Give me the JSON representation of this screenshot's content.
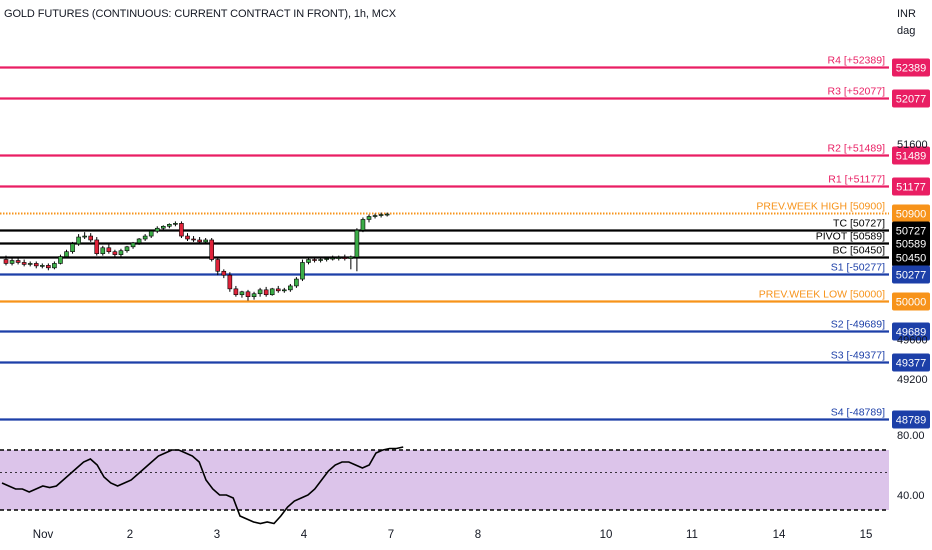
{
  "header": {
    "title": "GOLD FUTURES (CONTINUOUS: CURRENT CONTRACT IN FRONT), 1h, MCX",
    "currency": "INR",
    "currency_sub": "dag"
  },
  "colors": {
    "resistance": "#e91e63",
    "support": "#1c3fa8",
    "pivot": "#000000",
    "prev_week": "#f7931a",
    "up": "#3cae48",
    "down": "#e0233a",
    "rsi_fill": "#dcc4ea",
    "rsi_line": "#000000"
  },
  "chart_data": [
    {
      "type": "line",
      "name": "pivot-levels-price-chart",
      "ylim": [
        48700,
        52500
      ],
      "y_ticks": [
        {
          "value": 51600,
          "label": "51600"
        },
        {
          "value": 49600,
          "label": "49600"
        },
        {
          "value": 49200,
          "label": "49200"
        }
      ],
      "x_ticks": [
        "Nov",
        "2",
        "3",
        "4",
        "7",
        "8",
        "10",
        "11",
        "14",
        "15"
      ],
      "levels": [
        {
          "key": "r4",
          "label": "R4 [+52389]",
          "value": 52389,
          "badge": "52389",
          "color": "#e91e63",
          "style": "solid"
        },
        {
          "key": "r3",
          "label": "R3 [+52077]",
          "value": 52077,
          "badge": "52077",
          "color": "#e91e63",
          "style": "solid"
        },
        {
          "key": "r2",
          "label": "R2 [+51489]",
          "value": 51489,
          "badge": "51489",
          "color": "#e91e63",
          "style": "solid"
        },
        {
          "key": "r1",
          "label": "R1 [+51177]",
          "value": 51177,
          "badge": "51177",
          "color": "#e91e63",
          "style": "solid"
        },
        {
          "key": "pwh",
          "label": "PREV.WEEK HIGH [50900]",
          "value": 50900,
          "badge": "50900",
          "color": "#f7931a",
          "style": "dotted"
        },
        {
          "key": "tc",
          "label": "TC [50727]",
          "value": 50727,
          "badge": "50727",
          "color": "#000000",
          "style": "solid"
        },
        {
          "key": "pivot",
          "label": "PIVOT [50589]",
          "value": 50589,
          "badge": "50589",
          "color": "#000000",
          "style": "solid"
        },
        {
          "key": "bc",
          "label": "BC [50450]",
          "value": 50450,
          "badge": "50450",
          "color": "#000000",
          "style": "solid"
        },
        {
          "key": "s1",
          "label": "S1 [-50277]",
          "value": 50277,
          "badge": "50277",
          "color": "#1c3fa8",
          "style": "solid"
        },
        {
          "key": "pwl",
          "label": "PREV.WEEK LOW [50000]",
          "value": 50000,
          "badge": "50000",
          "color": "#f7931a",
          "style": "solid"
        },
        {
          "key": "s2",
          "label": "S2 [-49689]",
          "value": 49689,
          "badge": "49689",
          "color": "#1c3fa8",
          "style": "solid"
        },
        {
          "key": "s3",
          "label": "S3 [-49377]",
          "value": 49377,
          "badge": "49377",
          "color": "#1c3fa8",
          "style": "solid"
        },
        {
          "key": "s4",
          "label": "S4 [-48789]",
          "value": 48789,
          "badge": "48789",
          "color": "#1c3fa8",
          "style": "solid"
        }
      ],
      "candles": [
        {
          "o": 50420,
          "h": 50460,
          "c": 50380,
          "l": 50360
        },
        {
          "o": 50380,
          "h": 50440,
          "c": 50410,
          "l": 50360
        },
        {
          "o": 50410,
          "h": 50440,
          "c": 50390,
          "l": 50370
        },
        {
          "o": 50390,
          "h": 50420,
          "c": 50370,
          "l": 50350
        },
        {
          "o": 50370,
          "h": 50400,
          "c": 50380,
          "l": 50350
        },
        {
          "o": 50380,
          "h": 50400,
          "c": 50355,
          "l": 50330
        },
        {
          "o": 50355,
          "h": 50380,
          "c": 50360,
          "l": 50330
        },
        {
          "o": 50360,
          "h": 50380,
          "c": 50335,
          "l": 50310
        },
        {
          "o": 50335,
          "h": 50400,
          "c": 50380,
          "l": 50320
        },
        {
          "o": 50380,
          "h": 50470,
          "c": 50450,
          "l": 50370
        },
        {
          "o": 50450,
          "h": 50520,
          "c": 50500,
          "l": 50430
        },
        {
          "o": 50500,
          "h": 50600,
          "c": 50580,
          "l": 50480
        },
        {
          "o": 50580,
          "h": 50680,
          "c": 50650,
          "l": 50560
        },
        {
          "o": 50650,
          "h": 50700,
          "c": 50660,
          "l": 50630
        },
        {
          "o": 50660,
          "h": 50690,
          "c": 50620,
          "l": 50600
        },
        {
          "o": 50620,
          "h": 50650,
          "c": 50480,
          "l": 50460
        },
        {
          "o": 50480,
          "h": 50560,
          "c": 50540,
          "l": 50460
        },
        {
          "o": 50540,
          "h": 50580,
          "c": 50500,
          "l": 50480
        },
        {
          "o": 50500,
          "h": 50520,
          "c": 50470,
          "l": 50450
        },
        {
          "o": 50470,
          "h": 50530,
          "c": 50510,
          "l": 50450
        },
        {
          "o": 50510,
          "h": 50560,
          "c": 50550,
          "l": 50490
        },
        {
          "o": 50550,
          "h": 50600,
          "c": 50590,
          "l": 50530
        },
        {
          "o": 50590,
          "h": 50640,
          "c": 50630,
          "l": 50570
        },
        {
          "o": 50630,
          "h": 50680,
          "c": 50660,
          "l": 50610
        },
        {
          "o": 50660,
          "h": 50720,
          "c": 50710,
          "l": 50640
        },
        {
          "o": 50710,
          "h": 50760,
          "c": 50740,
          "l": 50690
        },
        {
          "o": 50740,
          "h": 50770,
          "c": 50760,
          "l": 50720
        },
        {
          "o": 50760,
          "h": 50790,
          "c": 50780,
          "l": 50740
        },
        {
          "o": 50780,
          "h": 50810,
          "c": 50790,
          "l": 50760
        },
        {
          "o": 50790,
          "h": 50810,
          "c": 50660,
          "l": 50640
        },
        {
          "o": 50660,
          "h": 50690,
          "c": 50630,
          "l": 50610
        },
        {
          "o": 50630,
          "h": 50660,
          "c": 50620,
          "l": 50600
        },
        {
          "o": 50620,
          "h": 50650,
          "c": 50600,
          "l": 50580
        },
        {
          "o": 50600,
          "h": 50640,
          "c": 50620,
          "l": 50580
        },
        {
          "o": 50620,
          "h": 50640,
          "c": 50420,
          "l": 50400
        },
        {
          "o": 50420,
          "h": 50440,
          "c": 50300,
          "l": 50260
        },
        {
          "o": 50300,
          "h": 50320,
          "c": 50260,
          "l": 50230
        },
        {
          "o": 50260,
          "h": 50290,
          "c": 50120,
          "l": 50090
        },
        {
          "o": 50120,
          "h": 50150,
          "c": 50060,
          "l": 50040
        },
        {
          "o": 50060,
          "h": 50100,
          "c": 50090,
          "l": 50030
        },
        {
          "o": 50090,
          "h": 50110,
          "c": 50040,
          "l": 50000
        },
        {
          "o": 50040,
          "h": 50090,
          "c": 50070,
          "l": 50010
        },
        {
          "o": 50070,
          "h": 50130,
          "c": 50110,
          "l": 50040
        },
        {
          "o": 50110,
          "h": 50140,
          "c": 50060,
          "l": 50040
        },
        {
          "o": 50060,
          "h": 50130,
          "c": 50120,
          "l": 50050
        },
        {
          "o": 50120,
          "h": 50150,
          "c": 50100,
          "l": 50080
        },
        {
          "o": 50100,
          "h": 50130,
          "c": 50110,
          "l": 50080
        },
        {
          "o": 50110,
          "h": 50170,
          "c": 50150,
          "l": 50090
        },
        {
          "o": 50150,
          "h": 50240,
          "c": 50220,
          "l": 50130
        },
        {
          "o": 50220,
          "h": 50420,
          "c": 50390,
          "l": 50200
        },
        {
          "o": 50390,
          "h": 50440,
          "c": 50420,
          "l": 50370
        },
        {
          "o": 50420,
          "h": 50450,
          "c": 50410,
          "l": 50390
        },
        {
          "o": 50410,
          "h": 50440,
          "c": 50420,
          "l": 50390
        },
        {
          "o": 50420,
          "h": 50450,
          "c": 50430,
          "l": 50400
        },
        {
          "o": 50430,
          "h": 50460,
          "c": 50435,
          "l": 50410
        },
        {
          "o": 50435,
          "h": 50460,
          "c": 50440,
          "l": 50410
        },
        {
          "o": 50440,
          "h": 50470,
          "c": 50430,
          "l": 50410
        },
        {
          "o": 50430,
          "h": 50460,
          "c": 50445,
          "l": 50320
        },
        {
          "o": 50445,
          "h": 50740,
          "c": 50720,
          "l": 50300
        },
        {
          "o": 50720,
          "h": 50850,
          "c": 50830,
          "l": 50700
        },
        {
          "o": 50830,
          "h": 50880,
          "c": 50860,
          "l": 50800
        },
        {
          "o": 50860,
          "h": 50890,
          "c": 50870,
          "l": 50840
        },
        {
          "o": 50870,
          "h": 50900,
          "c": 50880,
          "l": 50850
        },
        {
          "o": 50880,
          "h": 50900,
          "c": 50885,
          "l": 50860
        }
      ]
    },
    {
      "type": "line",
      "name": "rsi-indicator",
      "ylim": [
        24,
        88
      ],
      "y_ticks": [
        {
          "value": 80,
          "label": "80.00"
        },
        {
          "value": 40,
          "label": "40.00"
        }
      ],
      "bands": [
        30,
        55,
        70
      ],
      "values": [
        48,
        46,
        44,
        44,
        42,
        44,
        46,
        45,
        46,
        50,
        54,
        58,
        62,
        64,
        60,
        52,
        48,
        46,
        48,
        50,
        54,
        58,
        62,
        66,
        68,
        70,
        70,
        68,
        66,
        62,
        50,
        44,
        40,
        40,
        38,
        26,
        24,
        22,
        21,
        22,
        21,
        26,
        32,
        36,
        38,
        40,
        44,
        50,
        56,
        60,
        62,
        62,
        60,
        58,
        60,
        68,
        70,
        71,
        71,
        72
      ]
    }
  ]
}
